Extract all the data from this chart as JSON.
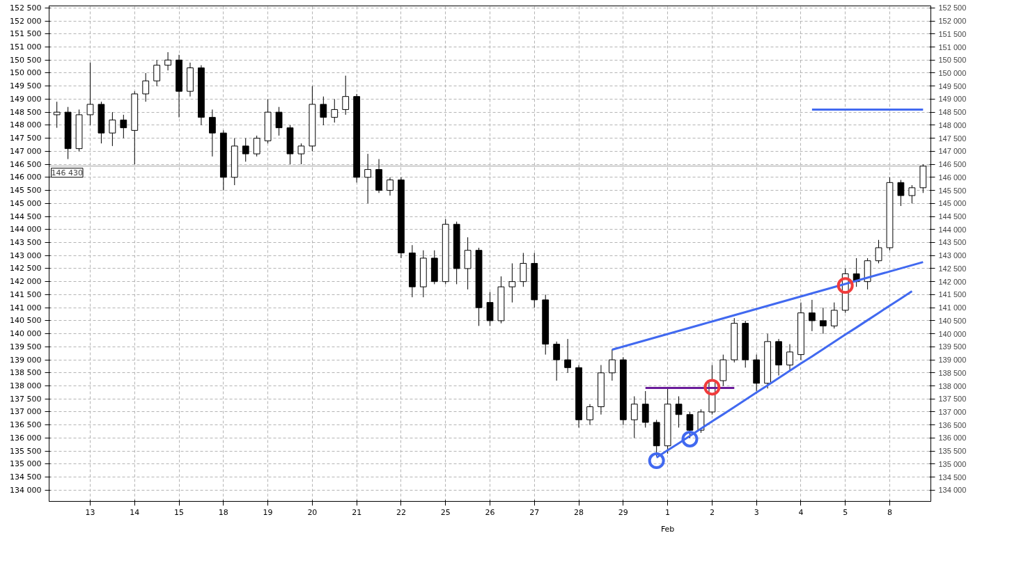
{
  "chart_data": {
    "type": "candlestick",
    "categories": [
      null,
      null,
      null,
      "13",
      null,
      null,
      null,
      "14",
      null,
      null,
      null,
      "15",
      null,
      null,
      null,
      "18",
      null,
      null,
      null,
      "19",
      null,
      null,
      null,
      "20",
      null,
      null,
      null,
      "21",
      null,
      null,
      null,
      "22",
      null,
      null,
      null,
      "25",
      null,
      null,
      null,
      "26",
      null,
      null,
      null,
      "27",
      null,
      null,
      null,
      "28",
      null,
      null,
      null,
      "29",
      null,
      null,
      null,
      "1",
      null,
      null,
      null,
      "2",
      null,
      null,
      null,
      "3",
      null,
      null,
      null,
      "4",
      null,
      null,
      null,
      "5",
      null,
      null,
      null,
      "8",
      null,
      null,
      null
    ],
    "ohlc": [
      [
        148400,
        148900,
        147900,
        148500
      ],
      [
        148500,
        148700,
        146700,
        147100
      ],
      [
        147100,
        148600,
        147000,
        148400
      ],
      [
        148400,
        150400,
        148000,
        148800
      ],
      [
        148800,
        148900,
        147300,
        147700
      ],
      [
        147700,
        148500,
        147200,
        148200
      ],
      [
        148200,
        148400,
        147500,
        147900
      ],
      [
        147800,
        149300,
        146500,
        149200
      ],
      [
        149200,
        150000,
        148900,
        149700
      ],
      [
        149700,
        150500,
        149500,
        150300
      ],
      [
        150300,
        150800,
        150100,
        150500
      ],
      [
        150500,
        150700,
        148300,
        149300
      ],
      [
        149300,
        150400,
        149100,
        150200
      ],
      [
        150200,
        150300,
        148000,
        148300
      ],
      [
        148300,
        148600,
        146800,
        147700
      ],
      [
        147700,
        147800,
        145500,
        146000
      ],
      [
        146000,
        147500,
        145700,
        147200
      ],
      [
        147200,
        147500,
        146600,
        146900
      ],
      [
        146900,
        147600,
        146800,
        147500
      ],
      [
        147400,
        149000,
        147300,
        148500
      ],
      [
        148500,
        148700,
        147600,
        147900
      ],
      [
        147900,
        148000,
        146500,
        146900
      ],
      [
        146900,
        147300,
        146500,
        147200
      ],
      [
        147200,
        149500,
        147000,
        148800
      ],
      [
        148800,
        149100,
        148000,
        148300
      ],
      [
        148300,
        149000,
        148100,
        148600
      ],
      [
        148600,
        149900,
        148400,
        149100
      ],
      [
        149100,
        149200,
        145800,
        146000
      ],
      [
        146000,
        146900,
        145000,
        146300
      ],
      [
        146300,
        146700,
        145400,
        145500
      ],
      [
        145500,
        146000,
        145300,
        145900
      ],
      [
        145900,
        146000,
        142900,
        143100
      ],
      [
        143100,
        143400,
        141400,
        141800
      ],
      [
        141800,
        143200,
        141400,
        142900
      ],
      [
        142900,
        143200,
        141900,
        142000
      ],
      [
        142000,
        144400,
        141900,
        144200
      ],
      [
        144200,
        144300,
        141900,
        142500
      ],
      [
        142500,
        143700,
        141700,
        143200
      ],
      [
        143200,
        143300,
        140300,
        141000
      ],
      [
        141200,
        141600,
        140300,
        140500
      ],
      [
        140500,
        142200,
        140400,
        141800
      ],
      [
        141800,
        142700,
        141200,
        142000
      ],
      [
        142000,
        143100,
        141800,
        142700
      ],
      [
        142700,
        143100,
        141000,
        141300
      ],
      [
        141300,
        141500,
        139200,
        139600
      ],
      [
        139600,
        139700,
        138200,
        139000
      ],
      [
        139000,
        139800,
        138500,
        138700
      ],
      [
        138700,
        138800,
        136400,
        136700
      ],
      [
        136700,
        137300,
        136500,
        137200
      ],
      [
        137200,
        138800,
        136900,
        138500
      ],
      [
        138500,
        139400,
        138200,
        139000
      ],
      [
        139000,
        139100,
        136500,
        136700
      ],
      [
        136700,
        137600,
        136000,
        137300
      ],
      [
        137300,
        137800,
        136400,
        136600
      ],
      [
        136600,
        136700,
        135300,
        135700
      ],
      [
        135700,
        137900,
        135400,
        137300
      ],
      [
        137300,
        137600,
        136400,
        136900
      ],
      [
        136900,
        137000,
        136000,
        136300
      ],
      [
        136300,
        137100,
        136200,
        137000
      ],
      [
        137000,
        138800,
        136900,
        138200
      ],
      [
        138200,
        139200,
        138000,
        139000
      ],
      [
        139000,
        140600,
        138900,
        140400
      ],
      [
        140400,
        140500,
        138700,
        139000
      ],
      [
        139000,
        139200,
        137800,
        138100
      ],
      [
        138100,
        140000,
        137900,
        139700
      ],
      [
        139700,
        139800,
        138400,
        138800
      ],
      [
        138800,
        139600,
        138600,
        139300
      ],
      [
        139200,
        141200,
        139000,
        140800
      ],
      [
        140800,
        141300,
        140100,
        140500
      ],
      [
        140500,
        141000,
        140000,
        140300
      ],
      [
        140300,
        141200,
        140200,
        140900
      ],
      [
        140900,
        142500,
        140800,
        142300
      ],
      [
        142300,
        142900,
        141800,
        142000
      ],
      [
        142000,
        142900,
        141700,
        142800
      ],
      [
        142800,
        143600,
        142700,
        143300
      ],
      [
        143300,
        146000,
        143200,
        145800
      ],
      [
        145800,
        145900,
        144900,
        145300
      ],
      [
        145300,
        145700,
        145000,
        145600
      ],
      [
        145600,
        146500,
        145400,
        146430
      ]
    ],
    "series": [
      {
        "type": "line",
        "color": "#4169f0",
        "values": [
          null,
          null,
          null,
          null,
          null,
          null,
          null,
          null,
          null,
          null,
          null,
          null,
          null,
          null,
          null,
          null,
          null,
          null,
          null,
          null,
          null,
          null,
          null,
          null,
          null,
          null,
          null,
          null,
          null,
          null,
          null,
          null,
          null,
          null,
          null,
          null,
          null,
          null,
          null,
          null,
          null,
          null,
          null,
          null,
          null,
          null,
          null,
          null,
          null,
          null,
          139390,
          139510,
          139630,
          139750,
          139870,
          139990,
          140110,
          140230,
          140350,
          140470,
          140590,
          140710,
          140830,
          140950,
          141070,
          141190,
          141310,
          141430,
          141550,
          141670,
          141790,
          141910,
          142030,
          142150,
          142270,
          142390,
          142510,
          142630,
          142750
        ]
      },
      {
        "type": "line",
        "color": "#4169f0",
        "values": [
          null,
          null,
          null,
          null,
          null,
          null,
          null,
          null,
          null,
          null,
          null,
          null,
          null,
          null,
          null,
          null,
          null,
          null,
          null,
          null,
          null,
          null,
          null,
          null,
          null,
          null,
          null,
          null,
          null,
          null,
          null,
          null,
          null,
          null,
          null,
          null,
          null,
          null,
          null,
          null,
          null,
          null,
          null,
          null,
          null,
          null,
          null,
          null,
          null,
          null,
          null,
          null,
          null,
          null,
          135250,
          135530,
          135800,
          136080,
          136360,
          136640,
          136910,
          137190,
          137470,
          137750,
          138020,
          138300,
          138580,
          138860,
          139130,
          139410,
          139690,
          139970,
          140240,
          140520,
          140800,
          141080,
          141350,
          141630,
          null
        ]
      },
      {
        "type": "line",
        "color": "#6a1b9a",
        "values": [
          null,
          null,
          null,
          null,
          null,
          null,
          null,
          null,
          null,
          null,
          null,
          null,
          null,
          null,
          null,
          null,
          null,
          null,
          null,
          null,
          null,
          null,
          null,
          null,
          null,
          null,
          null,
          null,
          null,
          null,
          null,
          null,
          null,
          null,
          null,
          null,
          null,
          null,
          null,
          null,
          null,
          null,
          null,
          null,
          null,
          null,
          null,
          null,
          null,
          null,
          null,
          null,
          null,
          137920,
          137920,
          137920,
          137920,
          137920,
          137920,
          137920,
          137920,
          137920,
          null,
          null,
          null,
          null,
          null,
          null,
          null,
          null,
          null,
          null,
          null,
          null,
          null,
          null,
          null,
          null,
          null
        ]
      },
      {
        "type": "line",
        "color": "#4169f0",
        "values": [
          null,
          null,
          null,
          null,
          null,
          null,
          null,
          null,
          null,
          null,
          null,
          null,
          null,
          null,
          null,
          null,
          null,
          null,
          null,
          null,
          null,
          null,
          null,
          null,
          null,
          null,
          null,
          null,
          null,
          null,
          null,
          null,
          null,
          null,
          null,
          null,
          null,
          null,
          null,
          null,
          null,
          null,
          null,
          null,
          null,
          null,
          null,
          null,
          null,
          null,
          null,
          null,
          null,
          null,
          null,
          null,
          null,
          null,
          null,
          null,
          null,
          null,
          null,
          null,
          null,
          null,
          null,
          null,
          148600,
          148600,
          148600,
          148600,
          148600,
          148600,
          148600,
          148600,
          148600,
          148600,
          148600
        ]
      },
      {
        "type": "scatter",
        "marker": "circle",
        "color": "#4169f0",
        "values": [
          null,
          null,
          null,
          null,
          null,
          null,
          null,
          null,
          null,
          null,
          null,
          null,
          null,
          null,
          null,
          null,
          null,
          null,
          null,
          null,
          null,
          null,
          null,
          null,
          null,
          null,
          null,
          null,
          null,
          null,
          null,
          null,
          null,
          null,
          null,
          null,
          null,
          null,
          null,
          null,
          null,
          null,
          null,
          null,
          null,
          null,
          null,
          null,
          null,
          null,
          null,
          null,
          null,
          null,
          135130,
          null,
          null,
          135960,
          null,
          null,
          null,
          null,
          null,
          null,
          null,
          null,
          null,
          null,
          null,
          null,
          null,
          null,
          null,
          null,
          null,
          null,
          null,
          null,
          null
        ]
      },
      {
        "type": "scatter",
        "marker": "circle",
        "color": "#f03c3c",
        "values": [
          null,
          null,
          null,
          null,
          null,
          null,
          null,
          null,
          null,
          null,
          null,
          null,
          null,
          null,
          null,
          null,
          null,
          null,
          null,
          null,
          null,
          null,
          null,
          null,
          null,
          null,
          null,
          null,
          null,
          null,
          null,
          null,
          null,
          null,
          null,
          null,
          null,
          null,
          null,
          null,
          null,
          null,
          null,
          null,
          null,
          null,
          null,
          null,
          null,
          null,
          null,
          null,
          null,
          null,
          null,
          null,
          null,
          null,
          null,
          137950,
          null,
          null,
          null,
          null,
          null,
          null,
          null,
          null,
          null,
          null,
          null,
          141850,
          null,
          null,
          null,
          null,
          null,
          null,
          null
        ]
      }
    ],
    "ylim": [
      133570,
      152575
    ],
    "yticks": [
      {
        "value": 134000,
        "label": "134 000"
      },
      {
        "value": 134500,
        "label": "134 500"
      },
      {
        "value": 135000,
        "label": "135 000"
      },
      {
        "value": 135500,
        "label": "135 500"
      },
      {
        "value": 136000,
        "label": "136 000"
      },
      {
        "value": 136500,
        "label": "136 500"
      },
      {
        "value": 137000,
        "label": "137 000"
      },
      {
        "value": 137500,
        "label": "137 500"
      },
      {
        "value": 138000,
        "label": "138 000"
      },
      {
        "value": 138500,
        "label": "138 500"
      },
      {
        "value": 139000,
        "label": "139 000"
      },
      {
        "value": 139500,
        "label": "139 500"
      },
      {
        "value": 140000,
        "label": "140 000"
      },
      {
        "value": 140500,
        "label": "140 500"
      },
      {
        "value": 141000,
        "label": "141 000"
      },
      {
        "value": 141500,
        "label": "141 500"
      },
      {
        "value": 142000,
        "label": "142 000"
      },
      {
        "value": 142500,
        "label": "142 500"
      },
      {
        "value": 143000,
        "label": "143 000"
      },
      {
        "value": 143500,
        "label": "143 500"
      },
      {
        "value": 144000,
        "label": "144 000"
      },
      {
        "value": 144500,
        "label": "144 500"
      },
      {
        "value": 145000,
        "label": "145 000"
      },
      {
        "value": 145500,
        "label": "145 500"
      },
      {
        "value": 146000,
        "label": "146 000"
      },
      {
        "value": 146500,
        "label": "146 500"
      },
      {
        "value": 147000,
        "label": "147 000"
      },
      {
        "value": 147500,
        "label": "147 500"
      },
      {
        "value": 148000,
        "label": "148 000"
      },
      {
        "value": 148500,
        "label": "148 500"
      },
      {
        "value": 149000,
        "label": "149 000"
      },
      {
        "value": 149500,
        "label": "149 500"
      },
      {
        "value": 150000,
        "label": "150 000"
      },
      {
        "value": 150500,
        "label": "150 500"
      },
      {
        "value": 151000,
        "label": "151 000"
      },
      {
        "value": 151500,
        "label": "151 500"
      },
      {
        "value": 152000,
        "label": "152 000"
      },
      {
        "value": 152500,
        "label": "152 500"
      }
    ],
    "y2lim": [
      133570,
      152575
    ],
    "y2ticks": [
      {
        "value": 134000,
        "label": "134 000"
      },
      {
        "value": 134500,
        "label": "134 500"
      },
      {
        "value": 135000,
        "label": "135 000"
      },
      {
        "value": 135500,
        "label": "135 500"
      },
      {
        "value": 136000,
        "label": "136 000"
      },
      {
        "value": 136500,
        "label": "136 500"
      },
      {
        "value": 137000,
        "label": "137 000"
      },
      {
        "value": 137500,
        "label": "137 500"
      },
      {
        "value": 138000,
        "label": "138 000"
      },
      {
        "value": 138500,
        "label": "138 500"
      },
      {
        "value": 139000,
        "label": "139 000"
      },
      {
        "value": 139500,
        "label": "139 500"
      },
      {
        "value": 140000,
        "label": "140 000"
      },
      {
        "value": 140500,
        "label": "140 500"
      },
      {
        "value": 141000,
        "label": "141 000"
      },
      {
        "value": 141500,
        "label": "141 500"
      },
      {
        "value": 142000,
        "label": "142 000"
      },
      {
        "value": 142500,
        "label": "142 500"
      },
      {
        "value": 143000,
        "label": "143 000"
      },
      {
        "value": 143500,
        "label": "143 500"
      },
      {
        "value": 144000,
        "label": "144 000"
      },
      {
        "value": 144500,
        "label": "144 500"
      },
      {
        "value": 145000,
        "label": "145 000"
      },
      {
        "value": 145500,
        "label": "145 500"
      },
      {
        "value": 146000,
        "label": "146 000"
      },
      {
        "value": 146500,
        "label": "146 500"
      },
      {
        "value": 147000,
        "label": "147 000"
      },
      {
        "value": 147500,
        "label": "147 500"
      },
      {
        "value": 148000,
        "label": "148 000"
      },
      {
        "value": 148500,
        "label": "148 500"
      },
      {
        "value": 149000,
        "label": "149 000"
      },
      {
        "value": 149500,
        "label": "149 500"
      },
      {
        "value": 150000,
        "label": "150 000"
      },
      {
        "value": 150500,
        "label": "150 500"
      },
      {
        "value": 151000,
        "label": "151 000"
      },
      {
        "value": 151500,
        "label": "151 500"
      },
      {
        "value": 152000,
        "label": "152 000"
      },
      {
        "value": 152500,
        "label": "152 500"
      }
    ],
    "ref_lines": [
      {
        "axis": "y",
        "value": 146430,
        "label": "146 430",
        "color": "#a0a0a0"
      }
    ],
    "annotations": [
      "Feb"
    ],
    "grid": true
  }
}
